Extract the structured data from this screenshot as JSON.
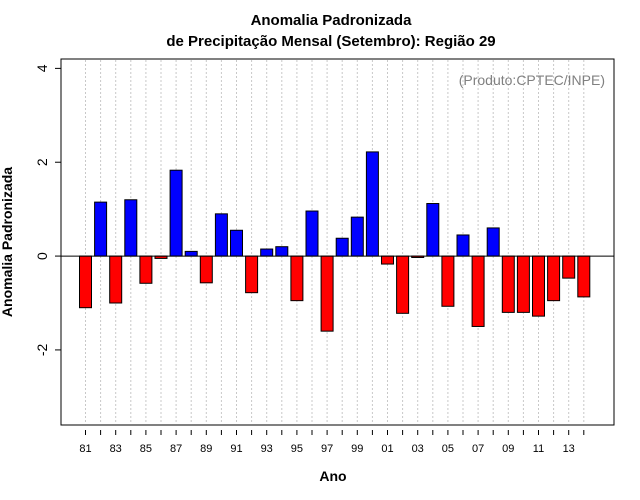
{
  "chart_data": {
    "type": "bar",
    "title_line1": "Anomalia Padronizada",
    "title_line2": "de Precipitação Mensal (Setembro): Região 29",
    "xlabel": "Ano",
    "ylabel": "Anomalia Padronizada",
    "credit": "(Produto:CPTEC/INPE)",
    "ylim": [
      -3.6,
      4.2
    ],
    "yticks": [
      -2,
      0,
      2,
      4
    ],
    "positive_color": "#0000ff",
    "negative_color": "#ff0000",
    "grid": "vertical dotted",
    "categories": [
      "81",
      "82",
      "83",
      "84",
      "85",
      "86",
      "87",
      "88",
      "89",
      "90",
      "91",
      "92",
      "93",
      "94",
      "95",
      "96",
      "97",
      "98",
      "99",
      "00",
      "01",
      "02",
      "03",
      "04",
      "05",
      "06",
      "07",
      "08",
      "09",
      "10",
      "11",
      "12",
      "13",
      "14"
    ],
    "xtick_labels": [
      "81",
      "83",
      "85",
      "87",
      "89",
      "91",
      "93",
      "95",
      "97",
      "99",
      "01",
      "03",
      "05",
      "07",
      "09",
      "11",
      "13"
    ],
    "values": [
      -1.1,
      1.15,
      -1.0,
      1.2,
      -0.58,
      -0.05,
      1.83,
      0.1,
      -0.57,
      0.9,
      0.55,
      -0.78,
      0.15,
      0.2,
      -0.95,
      0.96,
      -1.6,
      0.38,
      0.83,
      2.22,
      -0.17,
      -1.22,
      -0.03,
      1.12,
      -1.07,
      0.45,
      -1.5,
      0.6,
      -1.2,
      -1.2,
      -1.28,
      -0.95,
      -0.47,
      -0.87
    ]
  }
}
